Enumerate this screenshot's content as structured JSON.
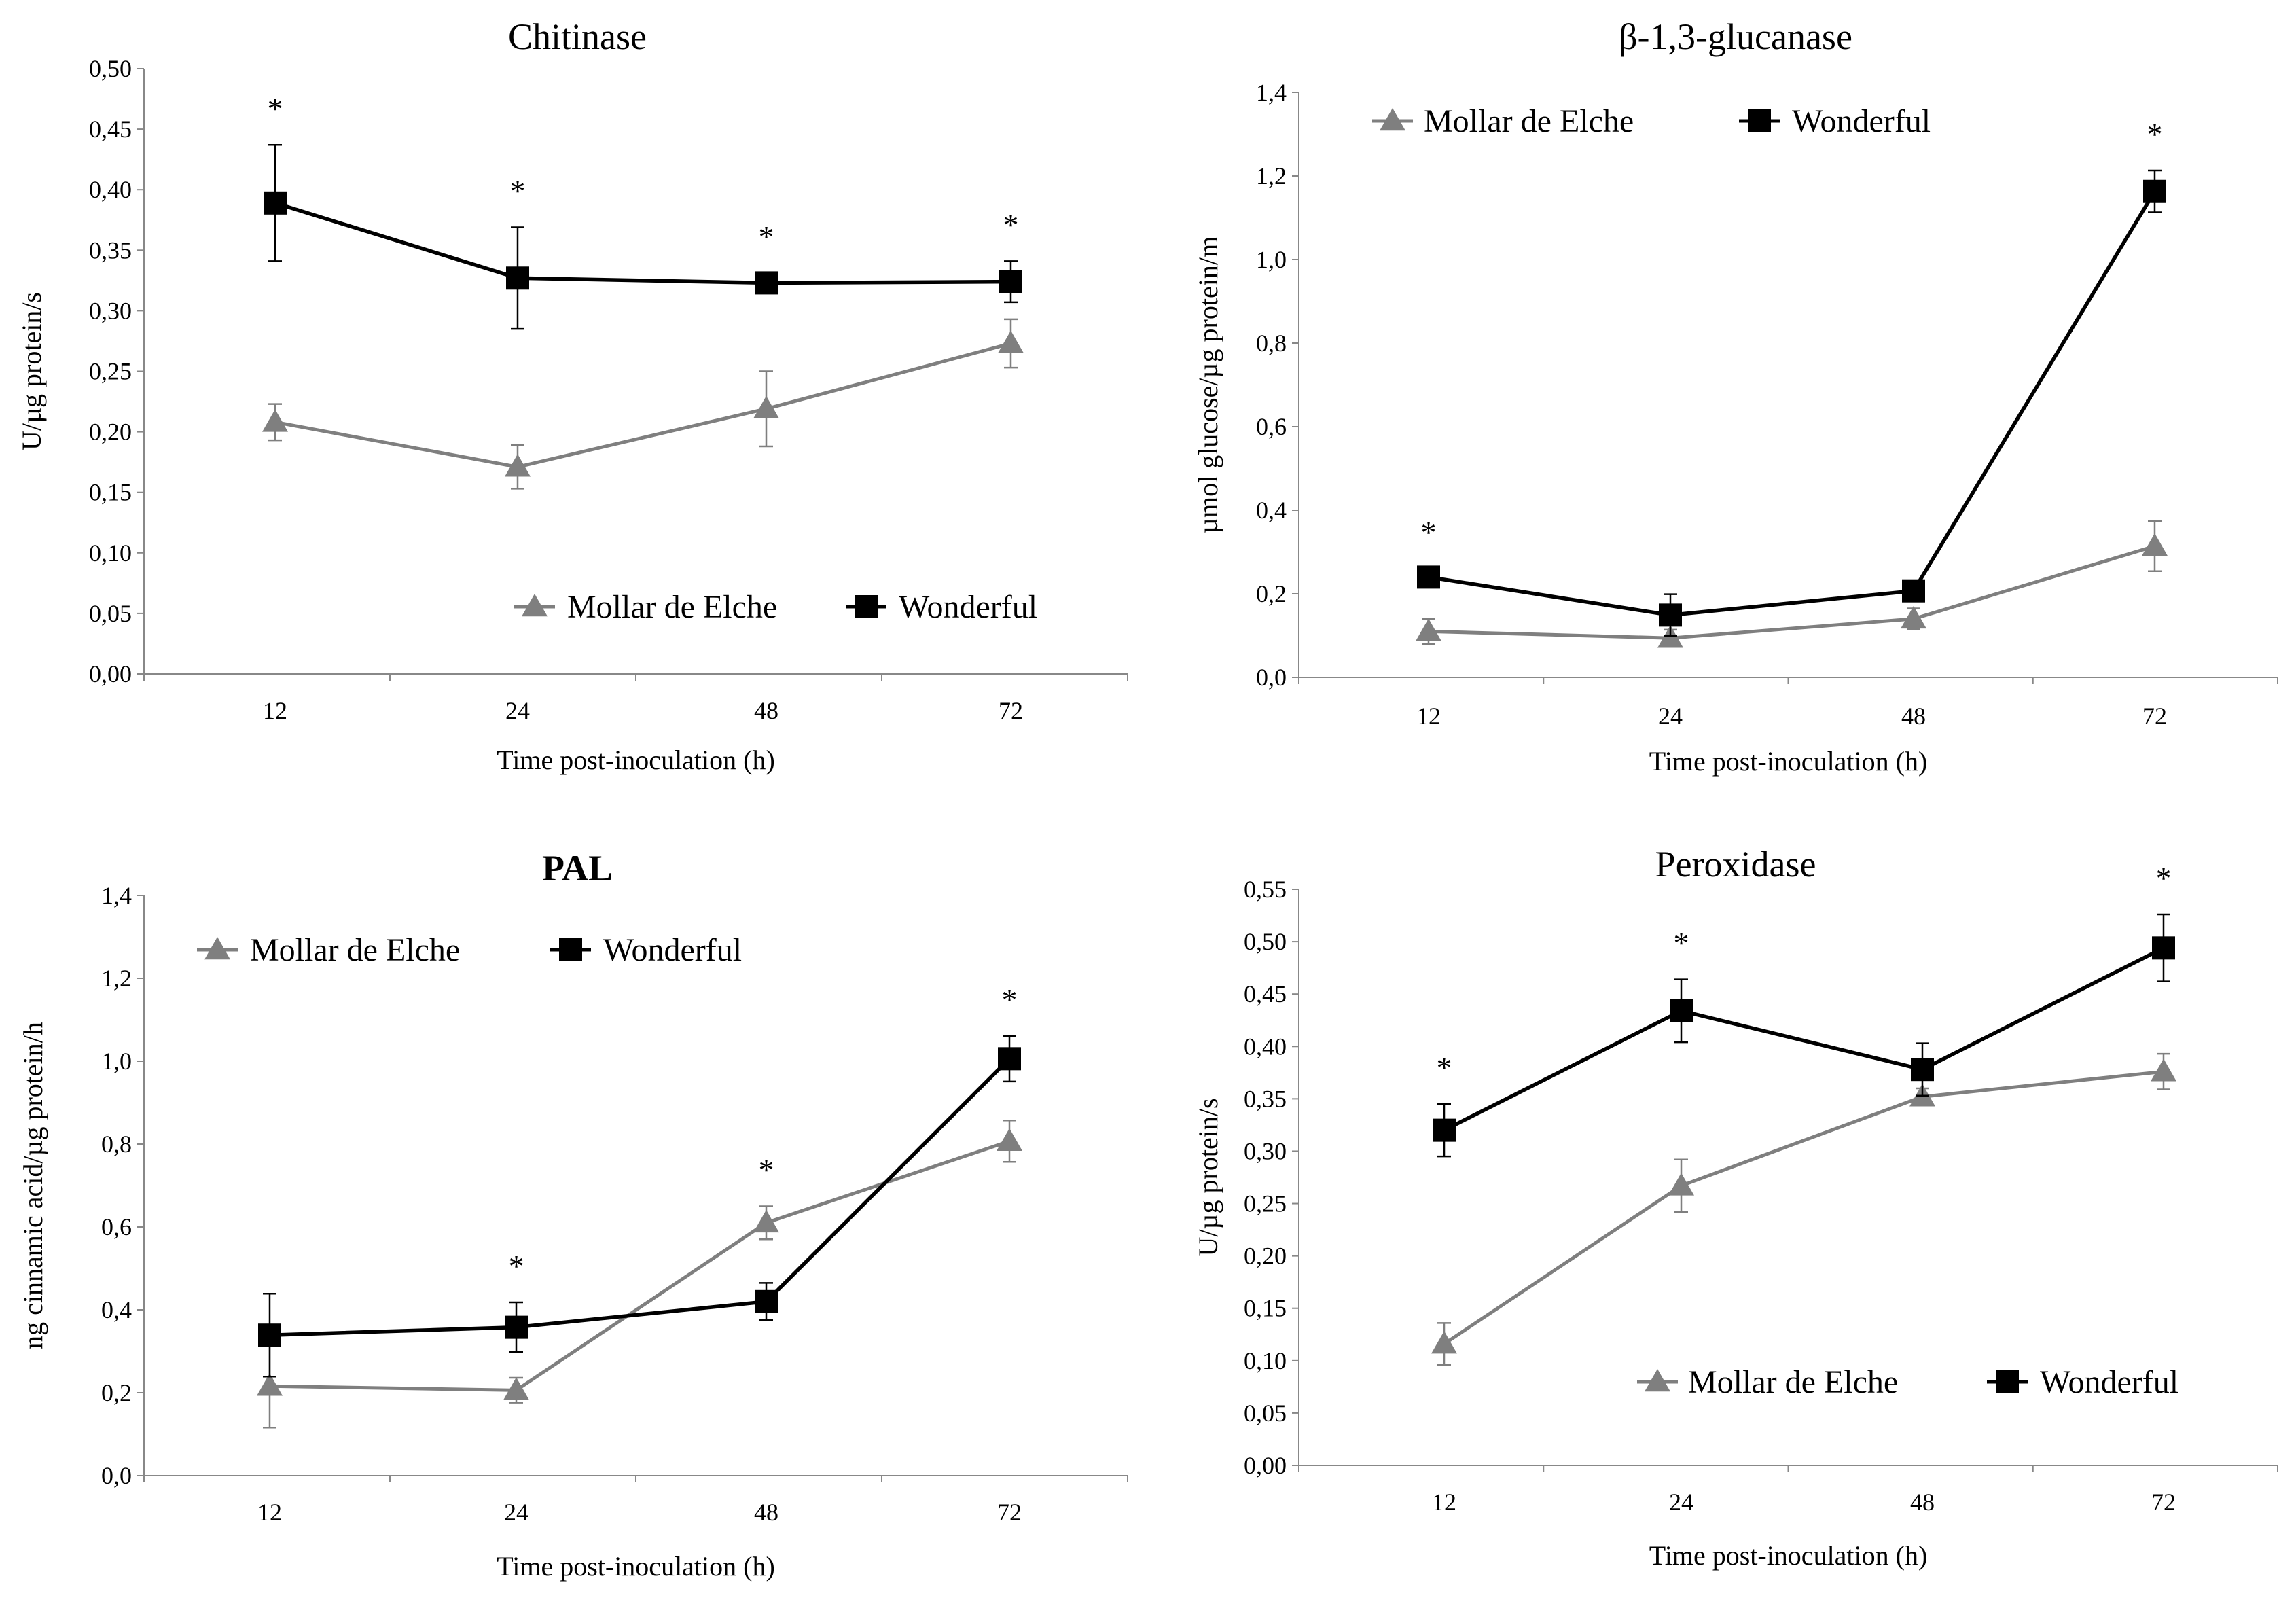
{
  "figure": {
    "xlabel": "Time post-inoculation  (h)",
    "series_names": [
      "Mollar de Elche",
      "Wonderful"
    ],
    "colors": {
      "mollar": "#7f7f7f",
      "wonderful": "#000000"
    }
  },
  "chart_data": [
    {
      "type": "line",
      "title": "Chitinase",
      "title_bold": false,
      "ylabel": "U/µg protein/s",
      "xlabel": "Time post-inoculation  (h)",
      "categories": [
        "12",
        "24",
        "48",
        "72"
      ],
      "ylim": [
        0,
        0.5
      ],
      "yticks": [
        "0,00",
        "0,05",
        "0,10",
        "0,15",
        "0,20",
        "0,25",
        "0,30",
        "0,35",
        "0,40",
        "0,45",
        "0,50"
      ],
      "series": [
        {
          "name": "Mollar de Elche",
          "values": [
            0.208,
            0.171,
            0.219,
            0.273
          ],
          "errors": [
            0.015,
            0.018,
            0.031,
            0.02
          ]
        },
        {
          "name": "Wonderful",
          "values": [
            0.389,
            0.327,
            0.323,
            0.324
          ],
          "errors": [
            0.048,
            0.042,
            0.008,
            0.017
          ]
        }
      ],
      "significance": [
        "*",
        "*",
        "*",
        "*"
      ],
      "legend": "bottom-right"
    },
    {
      "type": "line",
      "title": "β-1,3-glucanase",
      "title_bold": false,
      "ylabel": "µmol glucose/µg protein/m",
      "xlabel": "Time post-inoculation  (h)",
      "categories": [
        "12",
        "24",
        "48",
        "72"
      ],
      "ylim": [
        0,
        1.4
      ],
      "yticks": [
        "0,0",
        "0,2",
        "0,4",
        "0,6",
        "0,8",
        "1,0",
        "1,2",
        "1,4"
      ],
      "series": [
        {
          "name": "Mollar de Elche",
          "values": [
            0.11,
            0.094,
            0.14,
            0.314
          ],
          "errors": [
            0.03,
            0.02,
            0.025,
            0.06
          ]
        },
        {
          "name": "Wonderful",
          "values": [
            0.24,
            0.149,
            0.207,
            1.163
          ],
          "errors": [
            0.02,
            0.05,
            0.02,
            0.05
          ]
        }
      ],
      "significance": [
        "*",
        "",
        "",
        "*"
      ],
      "legend": "top-left"
    },
    {
      "type": "line",
      "title": "PAL",
      "title_bold": true,
      "ylabel": "ng cinnamic  acid/µg protein/h",
      "xlabel": "Time post-inoculation  (h)",
      "categories": [
        "12",
        "24",
        "48",
        "72"
      ],
      "ylim": [
        0,
        1.4
      ],
      "yticks": [
        "0,0",
        "0,2",
        "0,4",
        "0,6",
        "0,8",
        "1,0",
        "1,2",
        "1,4"
      ],
      "series": [
        {
          "name": "Mollar de Elche",
          "values": [
            0.216,
            0.206,
            0.61,
            0.807
          ],
          "errors": [
            0.1,
            0.03,
            0.04,
            0.05
          ]
        },
        {
          "name": "Wonderful",
          "values": [
            0.339,
            0.358,
            0.42,
            1.006
          ],
          "errors": [
            0.1,
            0.06,
            0.045,
            0.055
          ]
        }
      ],
      "significance": [
        "",
        "*",
        "*",
        "*"
      ],
      "legend": "top-left"
    },
    {
      "type": "line",
      "title": "Peroxidase",
      "title_bold": false,
      "ylabel": "U/µg protein/s",
      "xlabel": "Time post-inoculation  (h)",
      "categories": [
        "12",
        "24",
        "48",
        "72"
      ],
      "ylim": [
        0,
        0.55
      ],
      "yticks": [
        "0,00",
        "0,05",
        "0,10",
        "0,15",
        "0,20",
        "0,25",
        "0,30",
        "0,35",
        "0,40",
        "0,45",
        "0,50",
        "0,55"
      ],
      "series": [
        {
          "name": "Mollar de Elche",
          "values": [
            0.116,
            0.267,
            0.352,
            0.376
          ],
          "errors": [
            0.02,
            0.025,
            0.008,
            0.017
          ]
        },
        {
          "name": "Wonderful",
          "values": [
            0.32,
            0.434,
            0.378,
            0.494
          ],
          "errors": [
            0.025,
            0.03,
            0.025,
            0.032
          ]
        }
      ],
      "significance": [
        "*",
        "*",
        "",
        "*"
      ],
      "legend": "bottom-right"
    }
  ]
}
